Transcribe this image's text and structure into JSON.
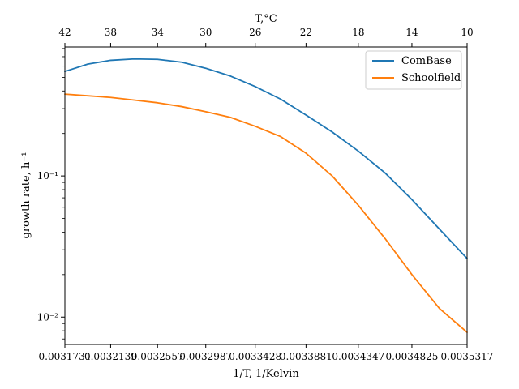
{
  "chart_data": {
    "type": "line",
    "title": "",
    "xlabel": "1/T, 1/Kelvin",
    "ylabel": "growth rate, h⁻¹",
    "top_xlabel": "T,°C",
    "yscale": "log",
    "xlim": [
      0.0031731,
      0.0035317
    ],
    "ylim": [
      0.0064,
      0.82
    ],
    "x_ticks": [
      {
        "value": 0.0031731,
        "label": "0.0031731"
      },
      {
        "value": 0.0032139,
        "label": "0.0032139"
      },
      {
        "value": 0.0032557,
        "label": "0.0032557"
      },
      {
        "value": 0.0032987,
        "label": "0.0032987"
      },
      {
        "value": 0.0033428,
        "label": "0.0033428"
      },
      {
        "value": 0.0033881,
        "label": "0.0033881"
      },
      {
        "value": 0.0034347,
        "label": "0.0034347"
      },
      {
        "value": 0.0034825,
        "label": "0.0034825"
      },
      {
        "value": 0.0035317,
        "label": "0.0035317"
      }
    ],
    "top_ticks": [
      {
        "value": 0.0031731,
        "label": "42"
      },
      {
        "value": 0.0032139,
        "label": "38"
      },
      {
        "value": 0.0032557,
        "label": "34"
      },
      {
        "value": 0.0032987,
        "label": "30"
      },
      {
        "value": 0.0033428,
        "label": "26"
      },
      {
        "value": 0.0033881,
        "label": "22"
      },
      {
        "value": 0.0034347,
        "label": "18"
      },
      {
        "value": 0.0034825,
        "label": "14"
      },
      {
        "value": 0.0035317,
        "label": "10"
      }
    ],
    "y_ticks": [
      {
        "value": 0.01,
        "label": "10⁻²"
      },
      {
        "value": 0.1,
        "label": "10⁻¹"
      }
    ],
    "legend_position": "top-right",
    "grid": false,
    "series": [
      {
        "name": "ComBase",
        "color": "#1f77b4",
        "x": [
          0.0031731,
          0.0031935,
          0.0032139,
          0.0032348,
          0.0032557,
          0.0032772,
          0.0032987,
          0.0033208,
          0.0033428,
          0.0033655,
          0.0033881,
          0.0034114,
          0.0034347,
          0.0034586,
          0.0034825,
          0.0035071,
          0.0035317
        ],
        "y": [
          0.55,
          0.62,
          0.66,
          0.675,
          0.67,
          0.64,
          0.58,
          0.51,
          0.43,
          0.35,
          0.27,
          0.205,
          0.15,
          0.105,
          0.068,
          0.042,
          0.026
        ]
      },
      {
        "name": "Schoolfield",
        "color": "#ff7f0e",
        "x": [
          0.0031731,
          0.0031935,
          0.0032139,
          0.0032348,
          0.0032557,
          0.0032772,
          0.0032987,
          0.0033208,
          0.0033428,
          0.0033655,
          0.0033881,
          0.0034114,
          0.0034347,
          0.0034586,
          0.0034825,
          0.0035071,
          0.0035317
        ],
        "y": [
          0.38,
          0.37,
          0.36,
          0.345,
          0.33,
          0.31,
          0.285,
          0.26,
          0.225,
          0.19,
          0.145,
          0.1,
          0.062,
          0.036,
          0.02,
          0.0115,
          0.0078
        ]
      }
    ]
  }
}
